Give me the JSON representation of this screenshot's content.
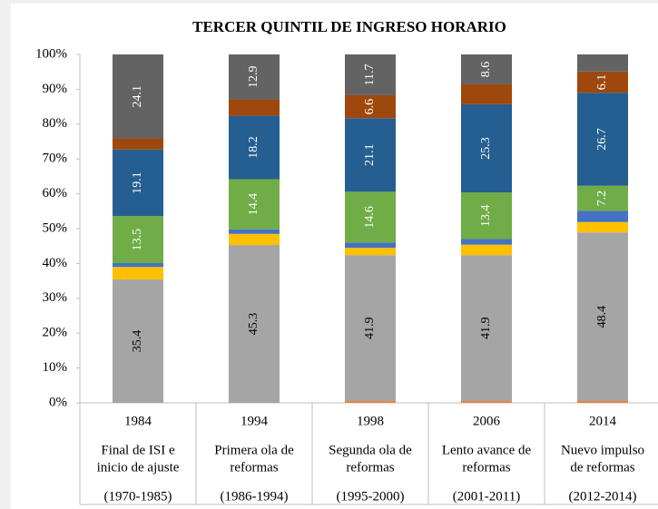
{
  "chart_data": {
    "type": "stacked_bar_100",
    "title": "TERCER QUINTIL DE INGRESO HORARIO",
    "categories": [
      "1984",
      "1994",
      "1998",
      "2006",
      "2014"
    ],
    "periods": [
      {
        "lines": [
          "Final de ISI e",
          "inicio de ajuste"
        ],
        "range": "(1970-1985)"
      },
      {
        "lines": [
          "Primera ola de",
          "reformas"
        ],
        "range": "(1986-1994)"
      },
      {
        "lines": [
          "Segunda ola de",
          "reformas"
        ],
        "range": "(1995-2000)"
      },
      {
        "lines": [
          "Lento avance de",
          "reformas"
        ],
        "range": "(2001-2011)"
      },
      {
        "lines": [
          "Nuevo impulso",
          "de reformas"
        ],
        "range": "(2012-2014)"
      }
    ],
    "series": [
      {
        "color": "#ed7d31",
        "values": [
          0,
          0,
          0.5,
          0.5,
          0.5
        ]
      },
      {
        "color": "#a5a5a5",
        "values": [
          35.4,
          45.3,
          41.9,
          41.9,
          48.4
        ],
        "value_labels": [
          "35.4",
          "45.3",
          "41.9",
          "41.9",
          "48.4"
        ]
      },
      {
        "color": "#ffc000",
        "values": [
          3.6,
          3.2,
          2.1,
          3.0,
          3.0
        ]
      },
      {
        "color": "#4472c4",
        "values": [
          1.1,
          1.3,
          1.5,
          1.6,
          3.2
        ]
      },
      {
        "color": "#70ad47",
        "values": [
          13.5,
          14.4,
          14.6,
          13.4,
          7.2
        ],
        "value_labels": [
          "13.5",
          "14.4",
          "14.6",
          "13.4",
          "7.2"
        ]
      },
      {
        "color": "#255e91",
        "values": [
          19.1,
          18.2,
          21.1,
          25.3,
          26.7
        ],
        "value_labels": [
          "19.1",
          "18.2",
          "21.1",
          "25.3",
          "26.7"
        ]
      },
      {
        "color": "#9e480e",
        "values": [
          3.2,
          4.7,
          6.6,
          5.7,
          6.1
        ],
        "value_labels": [
          null,
          null,
          "6.6",
          null,
          "6.1"
        ]
      },
      {
        "color": "#636363",
        "values": [
          24.1,
          12.9,
          11.7,
          8.6,
          4.9
        ],
        "value_labels": [
          "24.1",
          "12.9",
          "11.7",
          "8.6",
          null
        ]
      }
    ],
    "ylim": [
      0,
      100
    ],
    "yticks": [
      {
        "value": 0,
        "label": "0%"
      },
      {
        "value": 10,
        "label": "10%"
      },
      {
        "value": 20,
        "label": "20%"
      },
      {
        "value": 30,
        "label": "30%"
      },
      {
        "value": 40,
        "label": "40%"
      },
      {
        "value": 50,
        "label": "50%"
      },
      {
        "value": 60,
        "label": "60%"
      },
      {
        "value": 70,
        "label": "70%"
      },
      {
        "value": 80,
        "label": "80%"
      },
      {
        "value": 90,
        "label": "90%"
      },
      {
        "value": 100,
        "label": "100%"
      }
    ]
  }
}
